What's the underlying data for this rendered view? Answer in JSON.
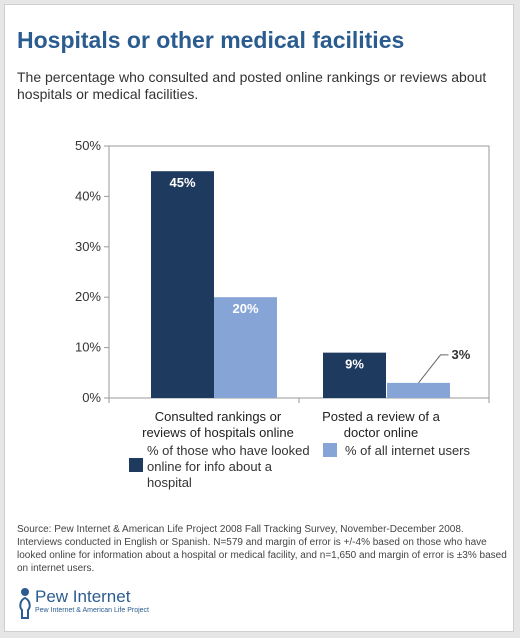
{
  "title": "Hospitals or other medical facilities",
  "subtitle": "The percentage who consulted and posted online rankings or reviews about hospitals or medical facilities.",
  "chart_data": {
    "type": "bar",
    "title": "Hospitals or other medical facilities",
    "categories": [
      "Consulted rankings or reviews of hospitals online",
      "Posted a review of a doctor online"
    ],
    "series": [
      {
        "name": "% of those who have looked online for info about a hospital",
        "values": [
          45,
          9
        ],
        "labels": [
          "45%",
          "9%"
        ],
        "color": "#1f3a5f"
      },
      {
        "name": "% of all internet users",
        "values": [
          20,
          3
        ],
        "labels": [
          "20%",
          "3%"
        ],
        "color": "#86a5d6"
      }
    ],
    "ylim": [
      0,
      50
    ],
    "yticks": [
      "0%",
      "10%",
      "20%",
      "30%",
      "40%",
      "50%"
    ],
    "ytick_values": [
      0,
      10,
      20,
      30,
      40,
      50
    ],
    "grid": false,
    "legend": "bottom"
  },
  "source": "Source:  Pew Internet & American Life Project 2008 Fall Tracking Survey, November-December 2008. Interviews conducted in English or Spanish. N=579 and margin of error is +/-4% based on those who have looked online for information about a hospital or medical facility, and n=1,650 and margin of error is ±3% based on internet users.",
  "logo": {
    "name": "Pew Internet",
    "sub": "Pew Internet & American Life Project"
  }
}
